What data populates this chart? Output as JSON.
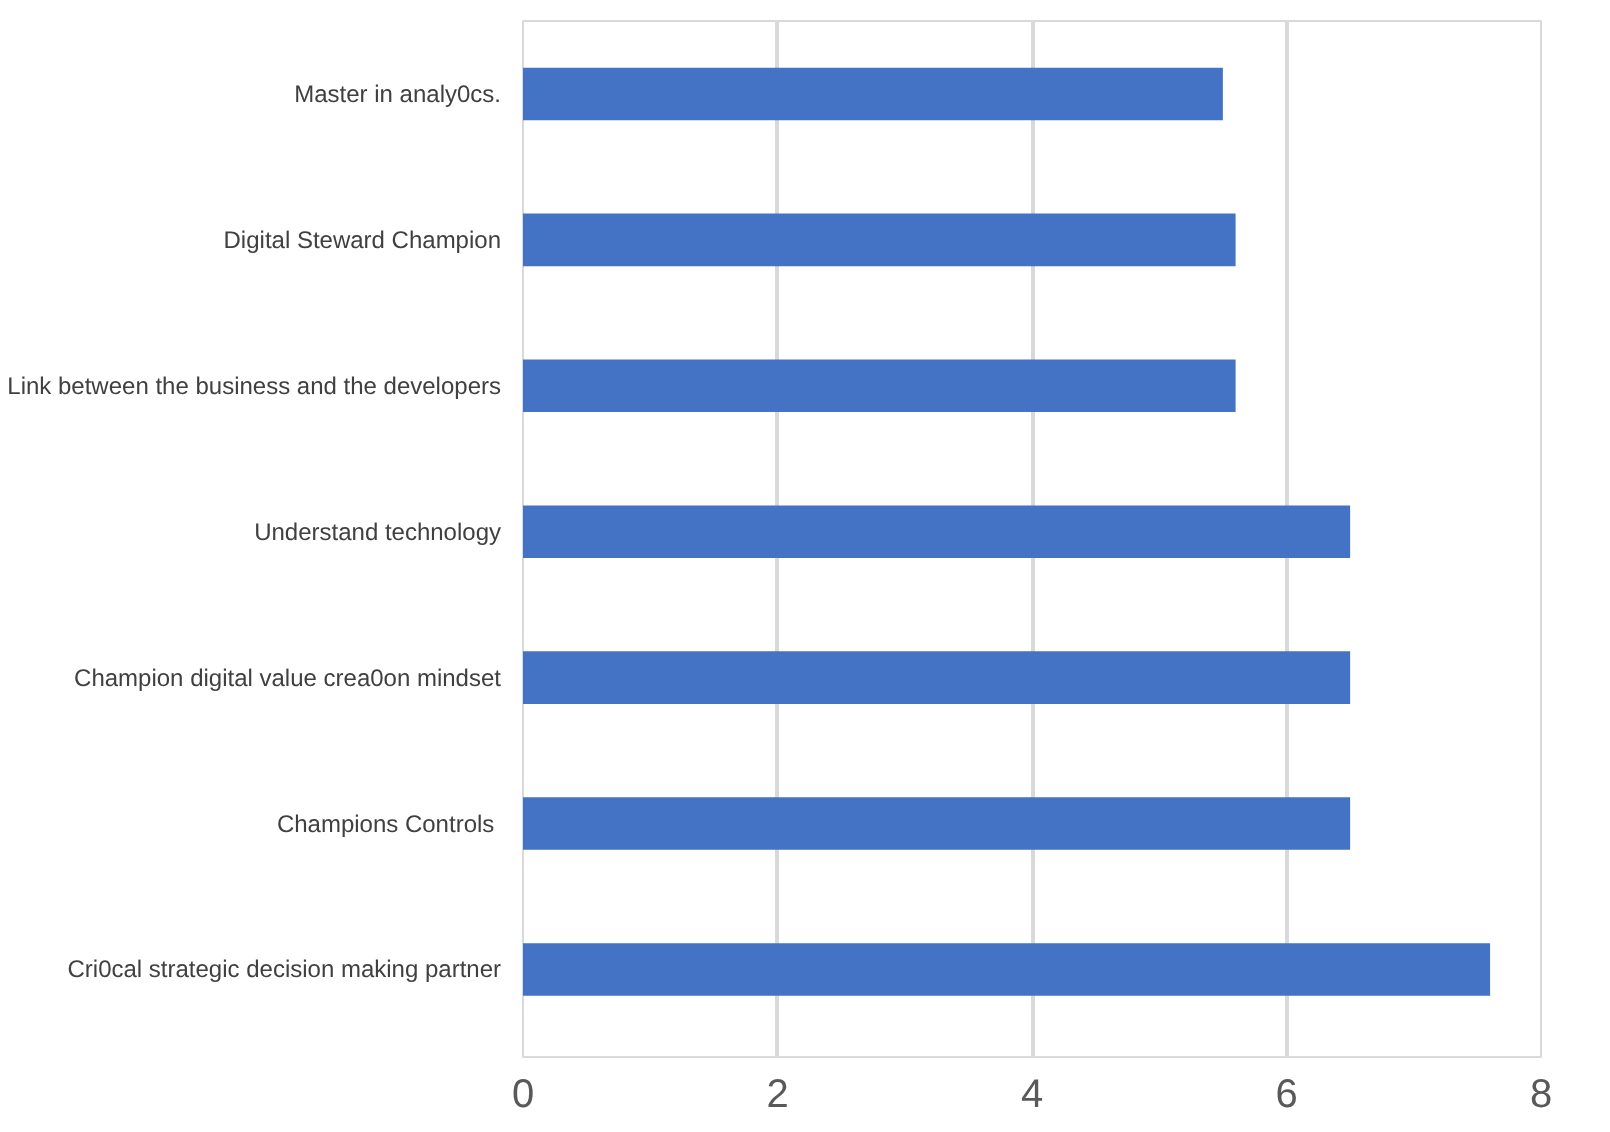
{
  "chart_data": {
    "type": "bar",
    "orientation": "horizontal",
    "categories": [
      "Master in analy0cs.",
      "Digital Steward Champion",
      "Link between the business and the developers",
      "Understand technology",
      "Champion digital value crea0on mindset",
      "Champions  Controls",
      "Cri0cal strategic decision making partner"
    ],
    "values": [
      5.5,
      5.6,
      5.6,
      6.5,
      6.5,
      6.5,
      7.6
    ],
    "color": "#4472c4",
    "xlim": [
      0,
      8
    ],
    "xticks": [
      0,
      2,
      4,
      6,
      8
    ],
    "grid": "x"
  }
}
